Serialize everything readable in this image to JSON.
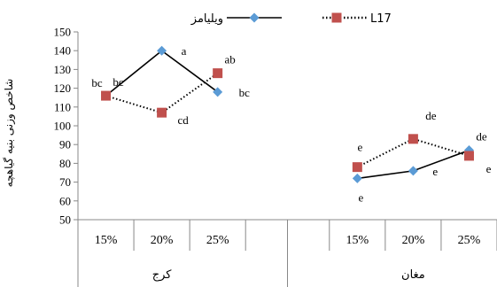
{
  "chart_data": {
    "type": "line",
    "ylabel": "شاخص وزنی بنیه گیاهچه",
    "ylim": [
      50,
      150
    ],
    "yticks": [
      50,
      60,
      70,
      80,
      90,
      100,
      110,
      120,
      130,
      140,
      150
    ],
    "legend_position": "top",
    "groups": [
      {
        "name": "کرج",
        "categories": [
          "15%",
          "20%",
          "25%"
        ]
      },
      {
        "name": "مغان",
        "categories": [
          "15%",
          "20%",
          "25%"
        ]
      }
    ],
    "series": [
      {
        "name": "ویلیامز",
        "color": "#5B9BD5",
        "line_style": "solid",
        "marker": "diamond",
        "segments": [
          {
            "group": 0,
            "values": [
              116,
              140,
              118
            ],
            "labels": [
              "bc",
              "a",
              "bc"
            ]
          },
          {
            "group": 1,
            "values": [
              72,
              76,
              87
            ],
            "labels": [
              "e",
              "e",
              "de"
            ]
          }
        ]
      },
      {
        "name": "L17",
        "color": "#C0504D",
        "line_style": "dotted",
        "marker": "square",
        "segments": [
          {
            "group": 0,
            "values": [
              116,
              107,
              128
            ],
            "labels": [
              "bc",
              "cd",
              "ab"
            ]
          },
          {
            "group": 1,
            "values": [
              78,
              93,
              84
            ],
            "labels": [
              "e",
              "de",
              "e"
            ]
          }
        ]
      }
    ]
  }
}
